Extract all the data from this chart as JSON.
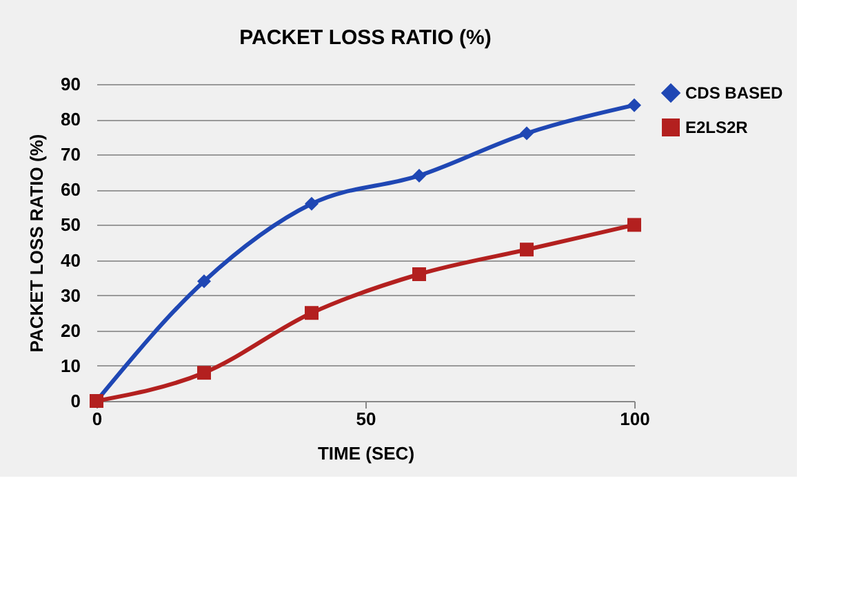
{
  "chart_data": {
    "type": "line",
    "title": "PACKET LOSS RATIO (%)",
    "xlabel": "TIME (SEC)",
    "ylabel": "PACKET LOSS RATIO (%)",
    "x": [
      0,
      20,
      40,
      60,
      80,
      100
    ],
    "series": [
      {
        "name": "CDS BASED",
        "color": "#1f47b4",
        "marker": "diamond",
        "values": [
          0,
          34,
          56,
          64,
          76,
          84
        ]
      },
      {
        "name": "E2LS2R",
        "color": "#b3201f",
        "marker": "square",
        "values": [
          0,
          8,
          25,
          36,
          43,
          50
        ]
      }
    ],
    "xlim": [
      0,
      100
    ],
    "xticks": [
      0,
      50,
      100
    ],
    "ylim": [
      0,
      90
    ],
    "yticks": [
      0,
      10,
      20,
      30,
      40,
      50,
      60,
      70,
      80,
      90
    ],
    "grid": "y",
    "legend": "right",
    "line_style": "solid"
  }
}
